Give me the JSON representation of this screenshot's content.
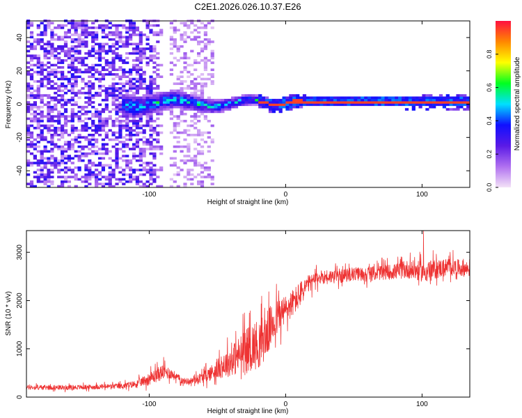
{
  "title": "C2E1.2026.026.10.37.E26",
  "chart_data": [
    {
      "type": "heatmap",
      "title": "C2E1.2026.026.10.37.E26",
      "xlabel": "Height of straight line (km)",
      "ylabel": "Frequency (Hz)",
      "xlim": [
        -190,
        135
      ],
      "ylim": [
        -50,
        50
      ],
      "xticks": [
        -100,
        0,
        100
      ],
      "yticks": [
        -40,
        -20,
        0,
        20,
        40
      ],
      "colorbar": {
        "label": "Normalized spectral amplitude",
        "range": [
          0,
          1
        ],
        "ticks": [
          0.0,
          0.2,
          0.4,
          0.6,
          0.8
        ],
        "tick_labels": [
          "0.0",
          "0.2",
          "0.4",
          "0.6",
          "0.8"
        ],
        "colors": [
          "#f3e2f7",
          "#b070f0",
          "#5a1ae6",
          "#1010ff",
          "#00e0ff",
          "#00ff20",
          "#ffff00",
          "#ff8800",
          "#ff1040"
        ]
      },
      "features": [
        {
          "name": "broadband noise",
          "x_range": [
            -190,
            -100
          ],
          "freq_range": [
            -50,
            50
          ],
          "amplitude": 0.15
        },
        {
          "name": "noise band",
          "x_range": [
            -85,
            -55
          ],
          "freq_range": [
            -50,
            50
          ],
          "amplitude": 0.05
        },
        {
          "name": "carrier line emerging",
          "x_range": [
            -120,
            -20
          ],
          "freq_range": [
            -8,
            8
          ],
          "amplitude": 0.35
        },
        {
          "name": "carrier line",
          "x_range": [
            -20,
            135
          ],
          "freq_center": 0,
          "amplitude": 0.95
        }
      ]
    },
    {
      "type": "line",
      "xlabel": "Height of straight line (km)",
      "ylabel": "SNR (10 * v/v)",
      "xlim": [
        -190,
        135
      ],
      "ylim": [
        0,
        3450
      ],
      "xticks": [
        -100,
        0,
        100
      ],
      "yticks": [
        0,
        1000,
        2000,
        3000
      ],
      "series": [
        {
          "name": "SNR",
          "color": "#ee3333",
          "x": [
            -190,
            -160,
            -140,
            -120,
            -110,
            -100,
            -95,
            -90,
            -85,
            -80,
            -75,
            -70,
            -60,
            -50,
            -40,
            -30,
            -25,
            -20,
            -15,
            -10,
            -5,
            0,
            5,
            10,
            15,
            20,
            25,
            30,
            40,
            50,
            60,
            70,
            80,
            90,
            100,
            110,
            120,
            135
          ],
          "mean": [
            200,
            200,
            210,
            230,
            270,
            380,
            450,
            520,
            500,
            420,
            330,
            330,
            420,
            580,
            750,
            950,
            1050,
            1100,
            1250,
            1500,
            1700,
            1800,
            1950,
            2100,
            2300,
            2400,
            2480,
            2500,
            2500,
            2550,
            2550,
            2580,
            2600,
            2650,
            2600,
            2650,
            2700,
            2650
          ],
          "spread": [
            60,
            60,
            60,
            70,
            90,
            150,
            180,
            200,
            150,
            100,
            80,
            80,
            150,
            250,
            400,
            550,
            600,
            650,
            600,
            550,
            450,
            400,
            350,
            350,
            250,
            200,
            180,
            180,
            170,
            170,
            180,
            190,
            200,
            240,
            260,
            250,
            230,
            200
          ],
          "peak": {
            "x": 101,
            "y": 3450
          }
        }
      ]
    }
  ]
}
